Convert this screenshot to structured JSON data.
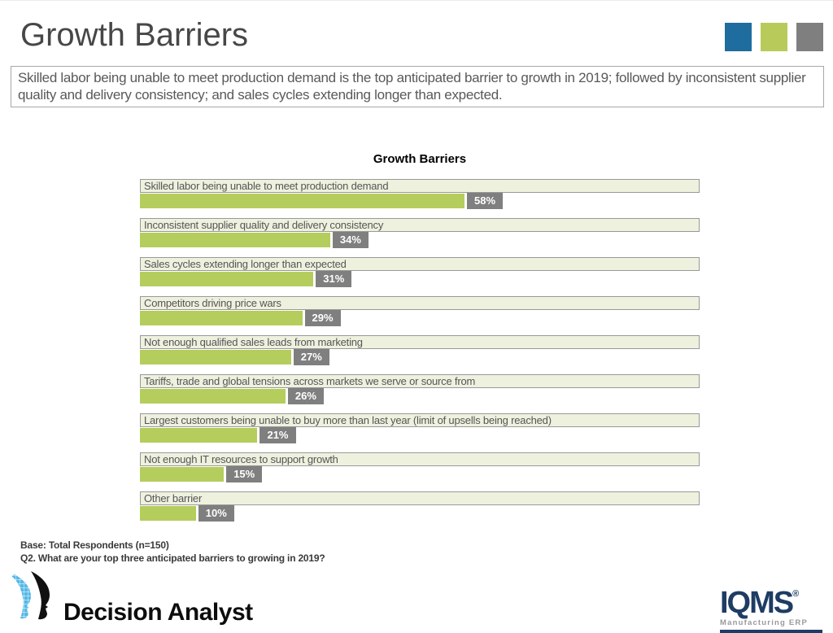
{
  "header": {
    "title": "Growth Barriers",
    "squares": [
      {
        "name": "blue-square",
        "color": "#1e6d9e"
      },
      {
        "name": "green-square",
        "color": "#b8cb5a"
      },
      {
        "name": "gray-square",
        "color": "#7f7f7f"
      }
    ]
  },
  "summary": {
    "text": "Skilled labor being unable to meet production demand is the top anticipated barrier to growth in 2019; followed by inconsistent supplier quality and delivery consistency; and sales cycles extending longer than expected."
  },
  "chart_data": {
    "type": "bar",
    "orientation": "horizontal",
    "title": "Growth Barriers",
    "categories": [
      "Skilled labor being unable to meet production demand",
      "Inconsistent supplier quality and delivery consistency",
      "Sales cycles extending longer than expected",
      "Competitors driving price wars",
      "Not enough qualified sales leads from marketing",
      "Tariffs, trade and global tensions across markets we serve or source from",
      "Largest customers being unable to buy more than last year (limit of upsells being reached)",
      "Not enough IT resources to support growth",
      "Other barrier"
    ],
    "values": [
      58,
      34,
      31,
      29,
      27,
      26,
      21,
      15,
      10
    ],
    "value_labels": [
      "58%",
      "34%",
      "31%",
      "29%",
      "27%",
      "26%",
      "21%",
      "15%",
      "10%"
    ],
    "xlim": [
      0,
      100
    ],
    "unit": "%",
    "grid": false,
    "legend": false,
    "colors": {
      "bar": "#b4cd5c",
      "value_badge_bg": "#7f7f7f",
      "value_badge_text": "#ffffff",
      "category_box_bg": "#eff1df",
      "category_box_border": "#999999",
      "category_text": "#555555"
    }
  },
  "footnotes": {
    "base": "Base: Total Respondents (n=150)",
    "question": "Q2. What are your top three anticipated barriers to growing in 2019?"
  },
  "logos": {
    "decision_analyst": {
      "text": "Decision Analyst"
    },
    "iqms": {
      "text": "IQMS",
      "registered": "®",
      "tagline": "Manufacturing ERP"
    }
  }
}
